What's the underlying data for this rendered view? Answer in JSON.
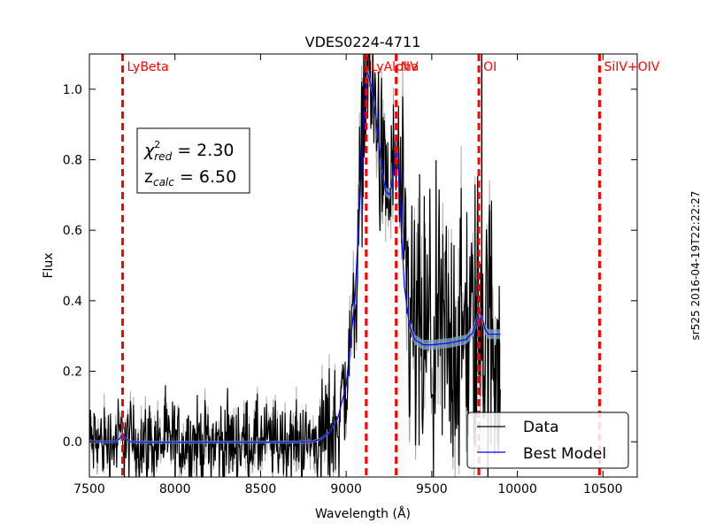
{
  "chart_data": {
    "type": "line",
    "title": "VDES0224-4711",
    "xlabel": "Wavelength  (Å)",
    "ylabel": "Flux",
    "xlim": [
      7500,
      10700
    ],
    "ylim": [
      -0.1,
      1.1
    ],
    "xticks": [
      7500,
      8000,
      8500,
      9000,
      9500,
      10000,
      10500
    ],
    "yticks": [
      0.0,
      0.2,
      0.4,
      0.6,
      0.8,
      1.0
    ],
    "xtick_labels": [
      "7500",
      "8000",
      "8500",
      "9000",
      "9500",
      "10000",
      "10500"
    ],
    "ytick_labels": [
      "0.0",
      "0.2",
      "0.4",
      "0.6",
      "0.8",
      "1.0"
    ],
    "data_range": [
      7500,
      9900
    ],
    "emission_lines": [
      {
        "name": "LyBeta",
        "wavelength": 7694
      },
      {
        "name": "LyAlpha",
        "wavelength": 9117
      },
      {
        "name": "NV",
        "wavelength": 9292
      },
      {
        "name": "OI",
        "wavelength": 9775
      },
      {
        "name": "SiIV+OIV",
        "wavelength": 10480
      }
    ],
    "data_marker_line": 9792,
    "series": [
      {
        "name": "Data",
        "color": "#000000",
        "uncertainty_color": "#aaaaaa"
      },
      {
        "name": "Best Model",
        "color": "#0000ff",
        "band_color": "#87a9c7",
        "x": [
          7500,
          7650,
          7680,
          7694,
          7710,
          7740,
          7800,
          8000,
          8200,
          8500,
          8700,
          8800,
          8850,
          8900,
          8950,
          9000,
          9050,
          9080,
          9100,
          9117,
          9130,
          9150,
          9175,
          9200,
          9230,
          9255,
          9270,
          9282,
          9292,
          9305,
          9320,
          9340,
          9370,
          9400,
          9450,
          9500,
          9600,
          9700,
          9740,
          9760,
          9775,
          9790,
          9810,
          9830,
          9860,
          9900
        ],
        "values": [
          0.0,
          0.0,
          0.01,
          0.025,
          0.01,
          0.0,
          -0.001,
          -0.001,
          -0.001,
          -0.001,
          -0.001,
          0.0,
          0.008,
          0.025,
          0.065,
          0.16,
          0.4,
          0.68,
          0.92,
          1.05,
          1.04,
          1.0,
          0.92,
          0.8,
          0.71,
          0.7,
          0.74,
          0.8,
          0.83,
          0.78,
          0.62,
          0.44,
          0.33,
          0.29,
          0.275,
          0.275,
          0.28,
          0.29,
          0.31,
          0.34,
          0.38,
          0.36,
          0.32,
          0.305,
          0.305,
          0.305
        ]
      }
    ],
    "annotation_box": {
      "chi_symbol": "χ",
      "chi_superscript": "2",
      "chi_subscript": "red",
      "chi_value": " = 2.30",
      "z_symbol": "z",
      "z_subscript": "calc",
      "z_value": " = 6.50"
    },
    "legend": {
      "position": "bottom-right",
      "entries": [
        "Data",
        "Best Model"
      ]
    },
    "side_stamp": "sr525 2016-04-19T22:22:27",
    "colors": {
      "emission_line": "#ff0000",
      "frame": "#000000"
    }
  }
}
